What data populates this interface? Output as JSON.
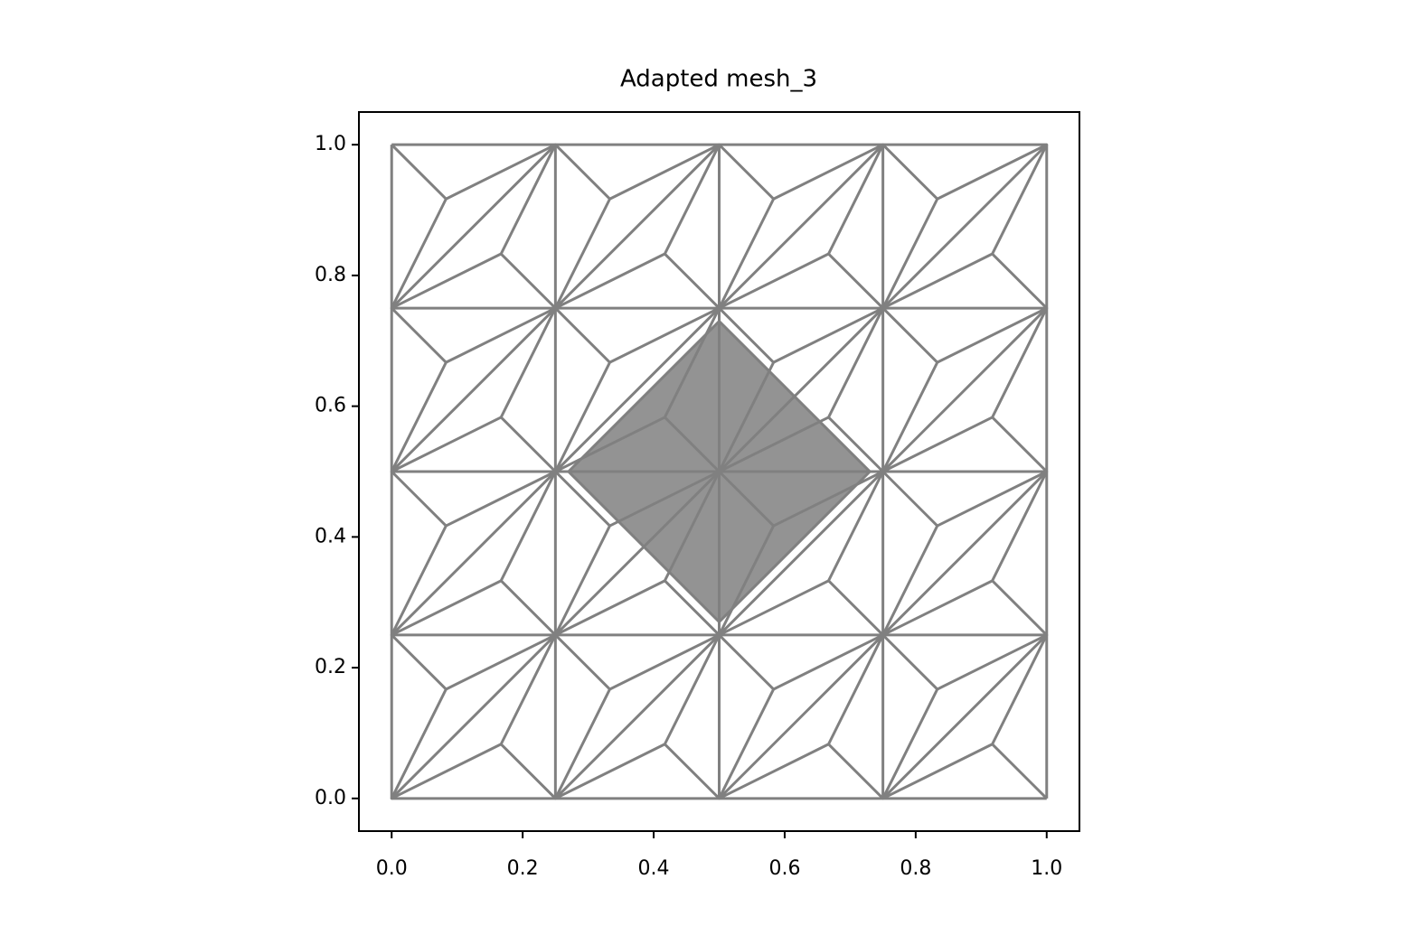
{
  "chart_data": {
    "type": "mesh",
    "title": "Adapted mesh_3",
    "xlim": [
      -0.05,
      1.05
    ],
    "ylim": [
      -0.05,
      1.05
    ],
    "xticks": [
      {
        "value": 0,
        "label": "0.0"
      },
      {
        "value": 0.2,
        "label": "0.2"
      },
      {
        "value": 0.4,
        "label": "0.4"
      },
      {
        "value": 0.6,
        "label": "0.6"
      },
      {
        "value": 0.8,
        "label": "0.8"
      },
      {
        "value": 1,
        "label": "1.0"
      }
    ],
    "yticks": [
      {
        "value": 0,
        "label": "0.0"
      },
      {
        "value": 0.2,
        "label": "0.2"
      },
      {
        "value": 0.4,
        "label": "0.4"
      },
      {
        "value": 0.6,
        "label": "0.6"
      },
      {
        "value": 0.8,
        "label": "0.8"
      },
      {
        "value": 1,
        "label": "1.0"
      }
    ],
    "color": "#808080",
    "edges": [
      {
        "x": [
          0,
          1
        ],
        "y": [
          0,
          0
        ]
      },
      {
        "x": [
          0,
          1
        ],
        "y": [
          0.25,
          0.25
        ]
      },
      {
        "x": [
          0,
          1
        ],
        "y": [
          0.5,
          0.5
        ]
      },
      {
        "x": [
          0,
          1
        ],
        "y": [
          0.75,
          0.75
        ]
      },
      {
        "x": [
          0,
          1
        ],
        "y": [
          1,
          1
        ]
      },
      {
        "x": [
          0,
          0
        ],
        "y": [
          0,
          1
        ]
      },
      {
        "x": [
          0.25,
          0.25
        ],
        "y": [
          0,
          1
        ]
      },
      {
        "x": [
          0.5,
          0.5
        ],
        "y": [
          0,
          1
        ]
      },
      {
        "x": [
          0.75,
          0.75
        ],
        "y": [
          0,
          1
        ]
      },
      {
        "x": [
          1,
          1
        ],
        "y": [
          0,
          1
        ]
      },
      {
        "x": [
          0,
          1
        ],
        "y": [
          0,
          1
        ]
      },
      {
        "x": [
          0,
          0.75
        ],
        "y": [
          0.25,
          1
        ]
      },
      {
        "x": [
          0,
          0.5
        ],
        "y": [
          0.5,
          1
        ]
      },
      {
        "x": [
          0,
          0.25
        ],
        "y": [
          0.75,
          1
        ]
      },
      {
        "x": [
          0.25,
          1
        ],
        "y": [
          0,
          0.75
        ]
      },
      {
        "x": [
          0.5,
          1
        ],
        "y": [
          0,
          0.5
        ]
      },
      {
        "x": [
          0.75,
          1
        ],
        "y": [
          0,
          0.25
        ]
      },
      {
        "x": [
          0,
          0.083,
          0,
          0.167,
          0.25,
          null,
          0.083,
          0.25,
          0.167
        ],
        "y": [
          0.25,
          0.167,
          0,
          0.083,
          0,
          null,
          0.167,
          0.25,
          0.083
        ]
      },
      {
        "x": [
          0.25,
          0.333,
          0.25,
          0.417,
          0.5,
          null,
          0.333,
          0.5,
          0.417
        ],
        "y": [
          0.25,
          0.167,
          0,
          0.083,
          0,
          null,
          0.167,
          0.25,
          0.083
        ]
      },
      {
        "x": [
          0.5,
          0.583,
          0.5,
          0.667,
          0.75,
          null,
          0.583,
          0.75,
          0.667
        ],
        "y": [
          0.25,
          0.167,
          0,
          0.083,
          0,
          null,
          0.167,
          0.25,
          0.083
        ]
      },
      {
        "x": [
          0.75,
          0.833,
          0.75,
          0.917,
          1,
          null,
          0.833,
          1,
          0.917
        ],
        "y": [
          0.25,
          0.167,
          0,
          0.083,
          0,
          null,
          0.167,
          0.25,
          0.083
        ]
      },
      {
        "x": [
          0,
          0.083,
          0,
          0.167,
          0.25,
          null,
          0.083,
          0.25,
          0.167
        ],
        "y": [
          0.5,
          0.417,
          0.25,
          0.333,
          0.25,
          null,
          0.417,
          0.5,
          0.333
        ]
      },
      {
        "x": [
          0.25,
          0.333,
          0.25,
          0.417,
          0.5,
          null,
          0.333,
          0.5,
          0.417
        ],
        "y": [
          0.5,
          0.417,
          0.25,
          0.333,
          0.25,
          null,
          0.417,
          0.5,
          0.333
        ]
      },
      {
        "x": [
          0.5,
          0.583,
          0.5,
          0.667,
          0.75,
          null,
          0.583,
          0.75,
          0.667
        ],
        "y": [
          0.5,
          0.417,
          0.25,
          0.333,
          0.25,
          null,
          0.417,
          0.5,
          0.333
        ]
      },
      {
        "x": [
          0.75,
          0.833,
          0.75,
          0.917,
          1,
          null,
          0.833,
          1,
          0.917
        ],
        "y": [
          0.5,
          0.417,
          0.25,
          0.333,
          0.25,
          null,
          0.417,
          0.5,
          0.333
        ]
      },
      {
        "x": [
          0,
          0.083,
          0,
          0.167,
          0.25,
          null,
          0.083,
          0.25,
          0.167
        ],
        "y": [
          0.75,
          0.667,
          0.5,
          0.583,
          0.5,
          null,
          0.667,
          0.75,
          0.583
        ]
      },
      {
        "x": [
          0.25,
          0.333,
          0.25,
          0.417,
          0.5,
          null,
          0.333,
          0.5,
          0.417
        ],
        "y": [
          0.75,
          0.667,
          0.5,
          0.583,
          0.5,
          null,
          0.667,
          0.75,
          0.583
        ]
      },
      {
        "x": [
          0.5,
          0.583,
          0.5,
          0.667,
          0.75,
          null,
          0.583,
          0.75,
          0.667
        ],
        "y": [
          0.75,
          0.667,
          0.5,
          0.583,
          0.5,
          null,
          0.667,
          0.75,
          0.583
        ]
      },
      {
        "x": [
          0.75,
          0.833,
          0.75,
          0.917,
          1,
          null,
          0.833,
          1,
          0.917
        ],
        "y": [
          0.75,
          0.667,
          0.5,
          0.583,
          0.5,
          null,
          0.667,
          0.75,
          0.583
        ]
      },
      {
        "x": [
          0,
          0.083,
          0,
          0.167,
          0.25,
          null,
          0.083,
          0.25,
          0.167
        ],
        "y": [
          1,
          0.917,
          0.75,
          0.833,
          0.75,
          null,
          0.917,
          1,
          0.833
        ]
      },
      {
        "x": [
          0.25,
          0.333,
          0.25,
          0.417,
          0.5,
          null,
          0.333,
          0.5,
          0.417
        ],
        "y": [
          1,
          0.917,
          0.75,
          0.833,
          0.75,
          null,
          0.917,
          1,
          0.833
        ]
      },
      {
        "x": [
          0.5,
          0.583,
          0.5,
          0.667,
          0.75,
          null,
          0.583,
          0.75,
          0.667
        ],
        "y": [
          1,
          0.917,
          0.75,
          0.833,
          0.75,
          null,
          0.917,
          1,
          0.833
        ]
      },
      {
        "x": [
          0.75,
          0.833,
          0.75,
          0.917,
          1,
          null,
          0.833,
          1,
          0.917
        ],
        "y": [
          1,
          0.917,
          0.75,
          0.833,
          0.75,
          null,
          0.917,
          1,
          0.833
        ]
      }
    ],
    "refined_region": {
      "x": [
        0.27,
        0.5,
        0.73,
        0.5,
        0.27
      ],
      "y": [
        0.5,
        0.73,
        0.5,
        0.27,
        0.5
      ]
    }
  }
}
